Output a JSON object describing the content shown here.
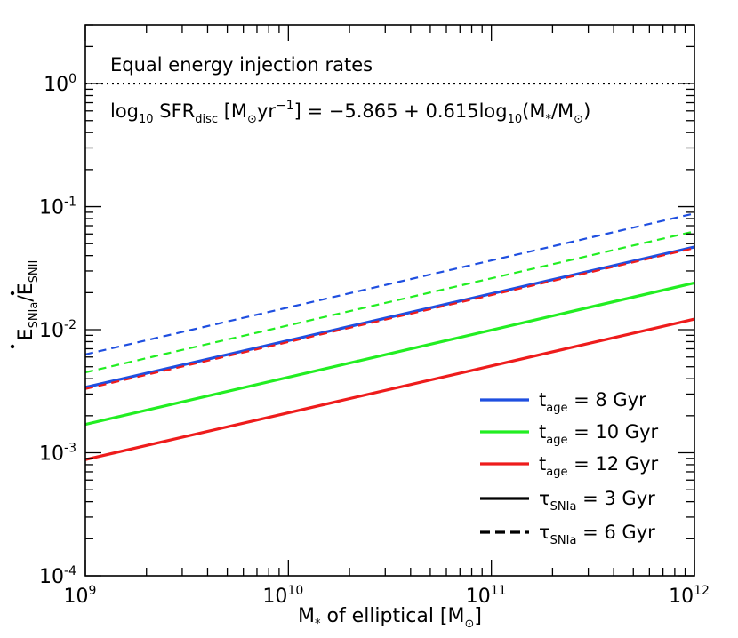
{
  "chart_data": {
    "type": "line",
    "xscale": "log",
    "yscale": "log",
    "xlim": [
      1000000000.0,
      1000000000000.0
    ],
    "ylim": [
      0.0001,
      3
    ],
    "x_ticks": [
      {
        "base": "10",
        "exp": "9"
      },
      {
        "base": "10",
        "exp": "10"
      },
      {
        "base": "10",
        "exp": "11"
      },
      {
        "base": "10",
        "exp": "12"
      }
    ],
    "y_ticks": [
      {
        "base": "10",
        "exp": "-4"
      },
      {
        "base": "10",
        "exp": "-3"
      },
      {
        "base": "10",
        "exp": "-2"
      },
      {
        "base": "10",
        "exp": "-1"
      },
      {
        "base": "10",
        "exp": "0"
      }
    ],
    "xlabel": {
      "pre": "M",
      "sub": "*",
      "mid": " of elliptical [M",
      "sub2": "⊙",
      "post": "]"
    },
    "ylabel": {
      "num": "E",
      "num_sub": "SNIa",
      "slash": "/",
      "den": "E",
      "den_sub": "SNII"
    },
    "reference_line": {
      "y": 1.0,
      "style": "dotted",
      "label": "Equal energy injection rates"
    },
    "formula": {
      "p1": "log",
      "p1_sub": "10",
      "p2": " SFR",
      "p2_sub": "disc",
      "p3": " [M",
      "p3_sub": "⊙",
      "p4": "yr",
      "p4_sup": "−1",
      "p5": "] = −5.865 + 0.615log",
      "p5_sub": "10",
      "p6": "(M",
      "p6_sub": "*",
      "p7": "/M",
      "p7_sub": "⊙",
      "p8": ")"
    },
    "series": [
      {
        "t_age": "8",
        "tau": "3",
        "color": "#1f4fe0",
        "style": "solid",
        "x": [
          1000000000.0,
          1000000000000.0
        ],
        "y": [
          0.0034,
          0.047
        ]
      },
      {
        "t_age": "10",
        "tau": "3",
        "color": "#22ee22",
        "style": "solid",
        "x": [
          1000000000.0,
          1000000000000.0
        ],
        "y": [
          0.0017,
          0.024
        ]
      },
      {
        "t_age": "12",
        "tau": "3",
        "color": "#ee1c1c",
        "style": "solid",
        "x": [
          1000000000.0,
          1000000000000.0
        ],
        "y": [
          0.00088,
          0.0122
        ]
      },
      {
        "t_age": "8",
        "tau": "6",
        "color": "#1f4fe0",
        "style": "dashed",
        "x": [
          1000000000.0,
          1000000000000.0
        ],
        "y": [
          0.0063,
          0.088
        ]
      },
      {
        "t_age": "10",
        "tau": "6",
        "color": "#22ee22",
        "style": "dashed",
        "x": [
          1000000000.0,
          1000000000000.0
        ],
        "y": [
          0.0045,
          0.063
        ]
      },
      {
        "t_age": "12",
        "tau": "6",
        "color": "#ee1c1c",
        "style": "dashed",
        "x": [
          1000000000.0,
          1000000000000.0
        ],
        "y": [
          0.0033,
          0.046
        ]
      }
    ],
    "legend": {
      "placement": "bottom-right",
      "entries": [
        {
          "sym": "t",
          "sub": "age",
          "text": " =  8 Gyr",
          "color": "#1f4fe0",
          "style": "solid"
        },
        {
          "sym": "t",
          "sub": "age",
          "text": " = 10 Gyr",
          "color": "#22ee22",
          "style": "solid"
        },
        {
          "sym": "t",
          "sub": "age",
          "text": " = 12 Gyr",
          "color": "#ee1c1c",
          "style": "solid"
        },
        {
          "sym": "τ",
          "sub": "SNIa",
          "text": " = 3 Gyr",
          "color": "#000000",
          "style": "solid"
        },
        {
          "sym": "τ",
          "sub": "SNIa",
          "text": " = 6 Gyr",
          "color": "#000000",
          "style": "dashed"
        }
      ]
    }
  }
}
